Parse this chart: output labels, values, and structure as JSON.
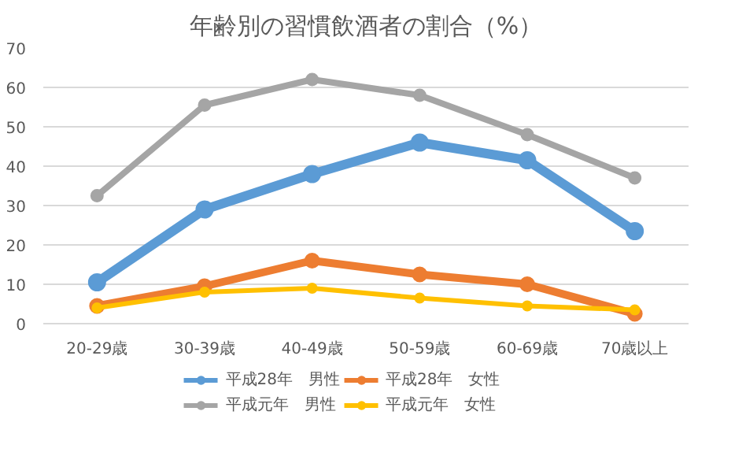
{
  "chart_data": {
    "type": "line",
    "title": "年齢別の習慣飲酒者の割合（%）",
    "categories": [
      "20-29歳",
      "30-39歳",
      "40-49歳",
      "50-59歳",
      "60-69歳",
      "70歳以上"
    ],
    "series": [
      {
        "name": "平成28年　男性",
        "color": "#5b9bd5",
        "values": [
          10.5,
          29,
          38,
          46,
          41.5,
          23.5
        ]
      },
      {
        "name": "平成28年　女性",
        "color": "#ed7d31",
        "values": [
          4.5,
          9.5,
          16,
          12.5,
          10,
          2.5
        ]
      },
      {
        "name": "平成元年　男性",
        "color": "#a5a5a5",
        "values": [
          32.5,
          55.5,
          62,
          58,
          48,
          37
        ]
      },
      {
        "name": "平成元年　女性",
        "color": "#ffc000",
        "values": [
          4,
          8,
          9,
          6.5,
          4.5,
          3.5
        ]
      }
    ],
    "ylim": [
      0,
      70
    ],
    "yticks": [
      0,
      10,
      20,
      30,
      40,
      50,
      60,
      70
    ],
    "grid": "y",
    "legend": "bottom",
    "marker": "circle",
    "line_style": "solid"
  }
}
